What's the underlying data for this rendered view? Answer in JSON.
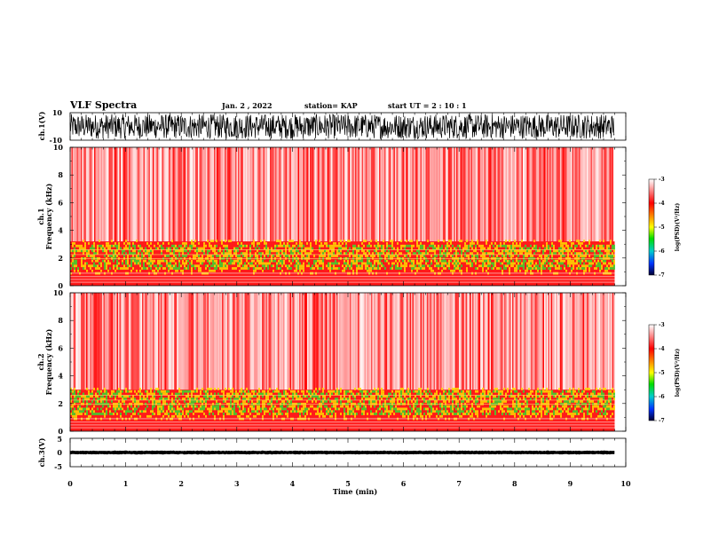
{
  "header": {
    "title": "VLF Spectra",
    "date": "Jan. 2 , 2022",
    "station": "station= KAP",
    "start": "start UT = 2 : 10 : 1"
  },
  "colors": {
    "spec_high": "#ff2a2a",
    "spec_low": "#ffffff",
    "band_yellow": "#ffdd00",
    "band_green": "#33dd33",
    "waveform": "#000000"
  },
  "chart_data": [
    {
      "type": "line",
      "name": "ch1-waveform",
      "ylabel": "ch.1(V)",
      "ylim": [
        -10,
        10
      ],
      "yticks": [
        "10",
        "-10"
      ],
      "xlim": [
        0,
        10
      ],
      "x_coverage": [
        0,
        9.8
      ],
      "description_level": "noise"
    },
    {
      "type": "heatmap",
      "name": "ch1-spectrogram",
      "ylabel_line1": "ch.1",
      "ylabel_line2": "Frequency (kHz)",
      "ylim": [
        0,
        10
      ],
      "yticks": [
        "0",
        "2",
        "4",
        "6",
        "8",
        "10"
      ],
      "xlim": [
        0,
        10
      ],
      "x_coverage": [
        0,
        9.8
      ],
      "band_top_khz": 3.2,
      "colorbar": {
        "label": "log(PSD)(V²/Hz)",
        "range": [
          -7,
          -3
        ],
        "ticks": [
          "-3",
          "-4",
          "-5",
          "-6",
          "-7"
        ]
      }
    },
    {
      "type": "heatmap",
      "name": "ch2-spectrogram",
      "ylabel_line1": "ch.2",
      "ylabel_line2": "Frequency (kHz)",
      "ylim": [
        0,
        10
      ],
      "yticks": [
        "0",
        "2",
        "4",
        "6",
        "8",
        "10"
      ],
      "xlim": [
        0,
        10
      ],
      "x_coverage": [
        0,
        9.8
      ],
      "band_top_khz": 3.0,
      "colorbar": {
        "label": "log(PSD)(V²/Hz)",
        "range": [
          -7,
          -3
        ],
        "ticks": [
          "-3",
          "-4",
          "-5",
          "-6",
          "-7"
        ]
      }
    },
    {
      "type": "line",
      "name": "ch3-waveform",
      "ylabel": "ch.3(V)",
      "ylim": [
        -5,
        5
      ],
      "yticks": [
        "5",
        "0",
        "-5"
      ],
      "xlim": [
        0,
        10
      ],
      "x_coverage": [
        0,
        9.8
      ],
      "level": 0,
      "amplitude": 0.5
    }
  ],
  "xaxis": {
    "label": "Time (min)",
    "ticks": [
      "0",
      "1",
      "2",
      "3",
      "4",
      "5",
      "6",
      "7",
      "8",
      "9",
      "10"
    ]
  }
}
